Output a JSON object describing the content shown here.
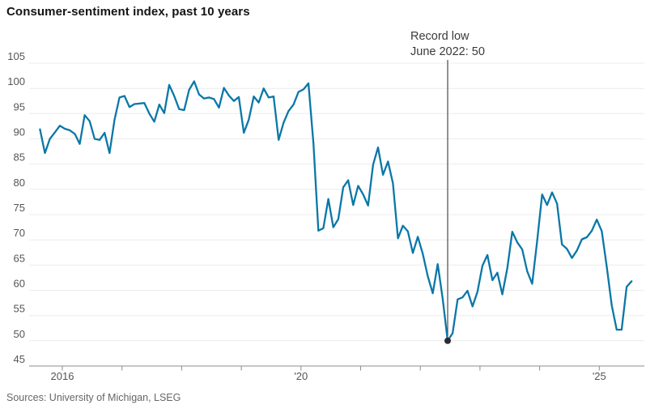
{
  "title": "Consumer-sentiment index, past 10 years",
  "source": "Sources: University of Michigan, LSEG",
  "annotation": {
    "line1": "Record low",
    "line2": "June 2022: 50"
  },
  "colors": {
    "line": "#0a77a7",
    "grid": "#ececec",
    "axis": "#8c8c8c",
    "tick_label": "#555555",
    "annotation_text": "#3a3a3a",
    "annotation_line": "#4a4a4a",
    "dot": "#2b2b2b",
    "title_text": "#141414",
    "source_text": "#666666"
  },
  "chart_data": {
    "type": "line",
    "title": "Consumer-sentiment index, past 10 years",
    "frequency": "monthly",
    "start_month": "2015-08",
    "end_month": "2025-07",
    "values": [
      91.9,
      87.2,
      90.0,
      91.3,
      92.6,
      92.0,
      91.7,
      91.0,
      89.0,
      94.7,
      93.5,
      90.0,
      89.8,
      91.2,
      87.2,
      93.8,
      98.2,
      98.5,
      96.3,
      96.9,
      97.0,
      97.1,
      95.0,
      93.4,
      96.8,
      95.1,
      100.7,
      98.5,
      95.9,
      95.7,
      99.7,
      101.4,
      98.8,
      98.0,
      98.2,
      97.9,
      96.2,
      100.1,
      98.6,
      97.5,
      98.3,
      91.2,
      93.8,
      98.4,
      97.2,
      100.0,
      98.2,
      98.4,
      89.8,
      93.2,
      95.5,
      96.8,
      99.3,
      99.8,
      101.0,
      89.1,
      71.8,
      72.3,
      78.1,
      72.5,
      74.1,
      80.4,
      81.8,
      76.9,
      80.7,
      79.0,
      76.8,
      84.9,
      88.3,
      82.9,
      85.5,
      81.2,
      70.3,
      72.8,
      71.7,
      67.4,
      70.6,
      67.2,
      62.8,
      59.4,
      65.2,
      58.4,
      50.0,
      51.5,
      58.2,
      58.6,
      59.9,
      56.8,
      59.7,
      64.9,
      67.0,
      62.0,
      63.5,
      59.2,
      64.4,
      71.6,
      69.5,
      68.1,
      63.8,
      61.3,
      69.7,
      79.0,
      76.9,
      79.4,
      77.2,
      69.1,
      68.2,
      66.4,
      67.9,
      70.1,
      70.5,
      71.8,
      74.0,
      71.7,
      64.7,
      57.0,
      52.2,
      52.2,
      60.7,
      61.8
    ],
    "ylabel": "",
    "xlabel": "",
    "y_ticks": [
      45,
      50,
      55,
      60,
      65,
      70,
      75,
      80,
      85,
      90,
      95,
      100,
      105
    ],
    "ylim": [
      45,
      107
    ],
    "grid": "horizontal",
    "x_ticks": [
      {
        "year": 2016,
        "label": "2016"
      },
      {
        "year": 2017,
        "label": ""
      },
      {
        "year": 2018,
        "label": ""
      },
      {
        "year": 2019,
        "label": ""
      },
      {
        "year": 2020,
        "label": "'20"
      },
      {
        "year": 2021,
        "label": ""
      },
      {
        "year": 2022,
        "label": ""
      },
      {
        "year": 2023,
        "label": ""
      },
      {
        "year": 2024,
        "label": ""
      },
      {
        "year": 2025,
        "label": "'25"
      }
    ],
    "record_low": {
      "date": "2022-06",
      "value": 50,
      "label": "Record low June 2022: 50"
    },
    "legend": "none"
  }
}
